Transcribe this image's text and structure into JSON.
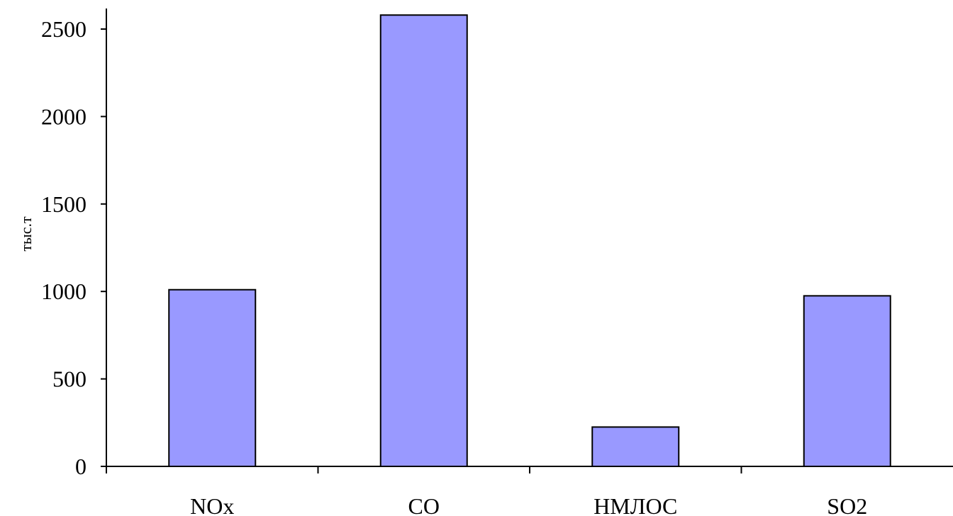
{
  "chart_data": {
    "type": "bar",
    "title": "",
    "xlabel": "",
    "ylabel": "тыс.т",
    "categories": [
      "NOx",
      "CO",
      "НМЛОС",
      "SO2"
    ],
    "values": [
      1010,
      2580,
      225,
      975
    ],
    "ylim": [
      0,
      2500
    ],
    "yticks": [
      0,
      500,
      1000,
      1500,
      2000,
      2500
    ],
    "grid": false,
    "legend": "none",
    "bar_color": "#9999ff",
    "bar_edge_color": "#000000"
  }
}
